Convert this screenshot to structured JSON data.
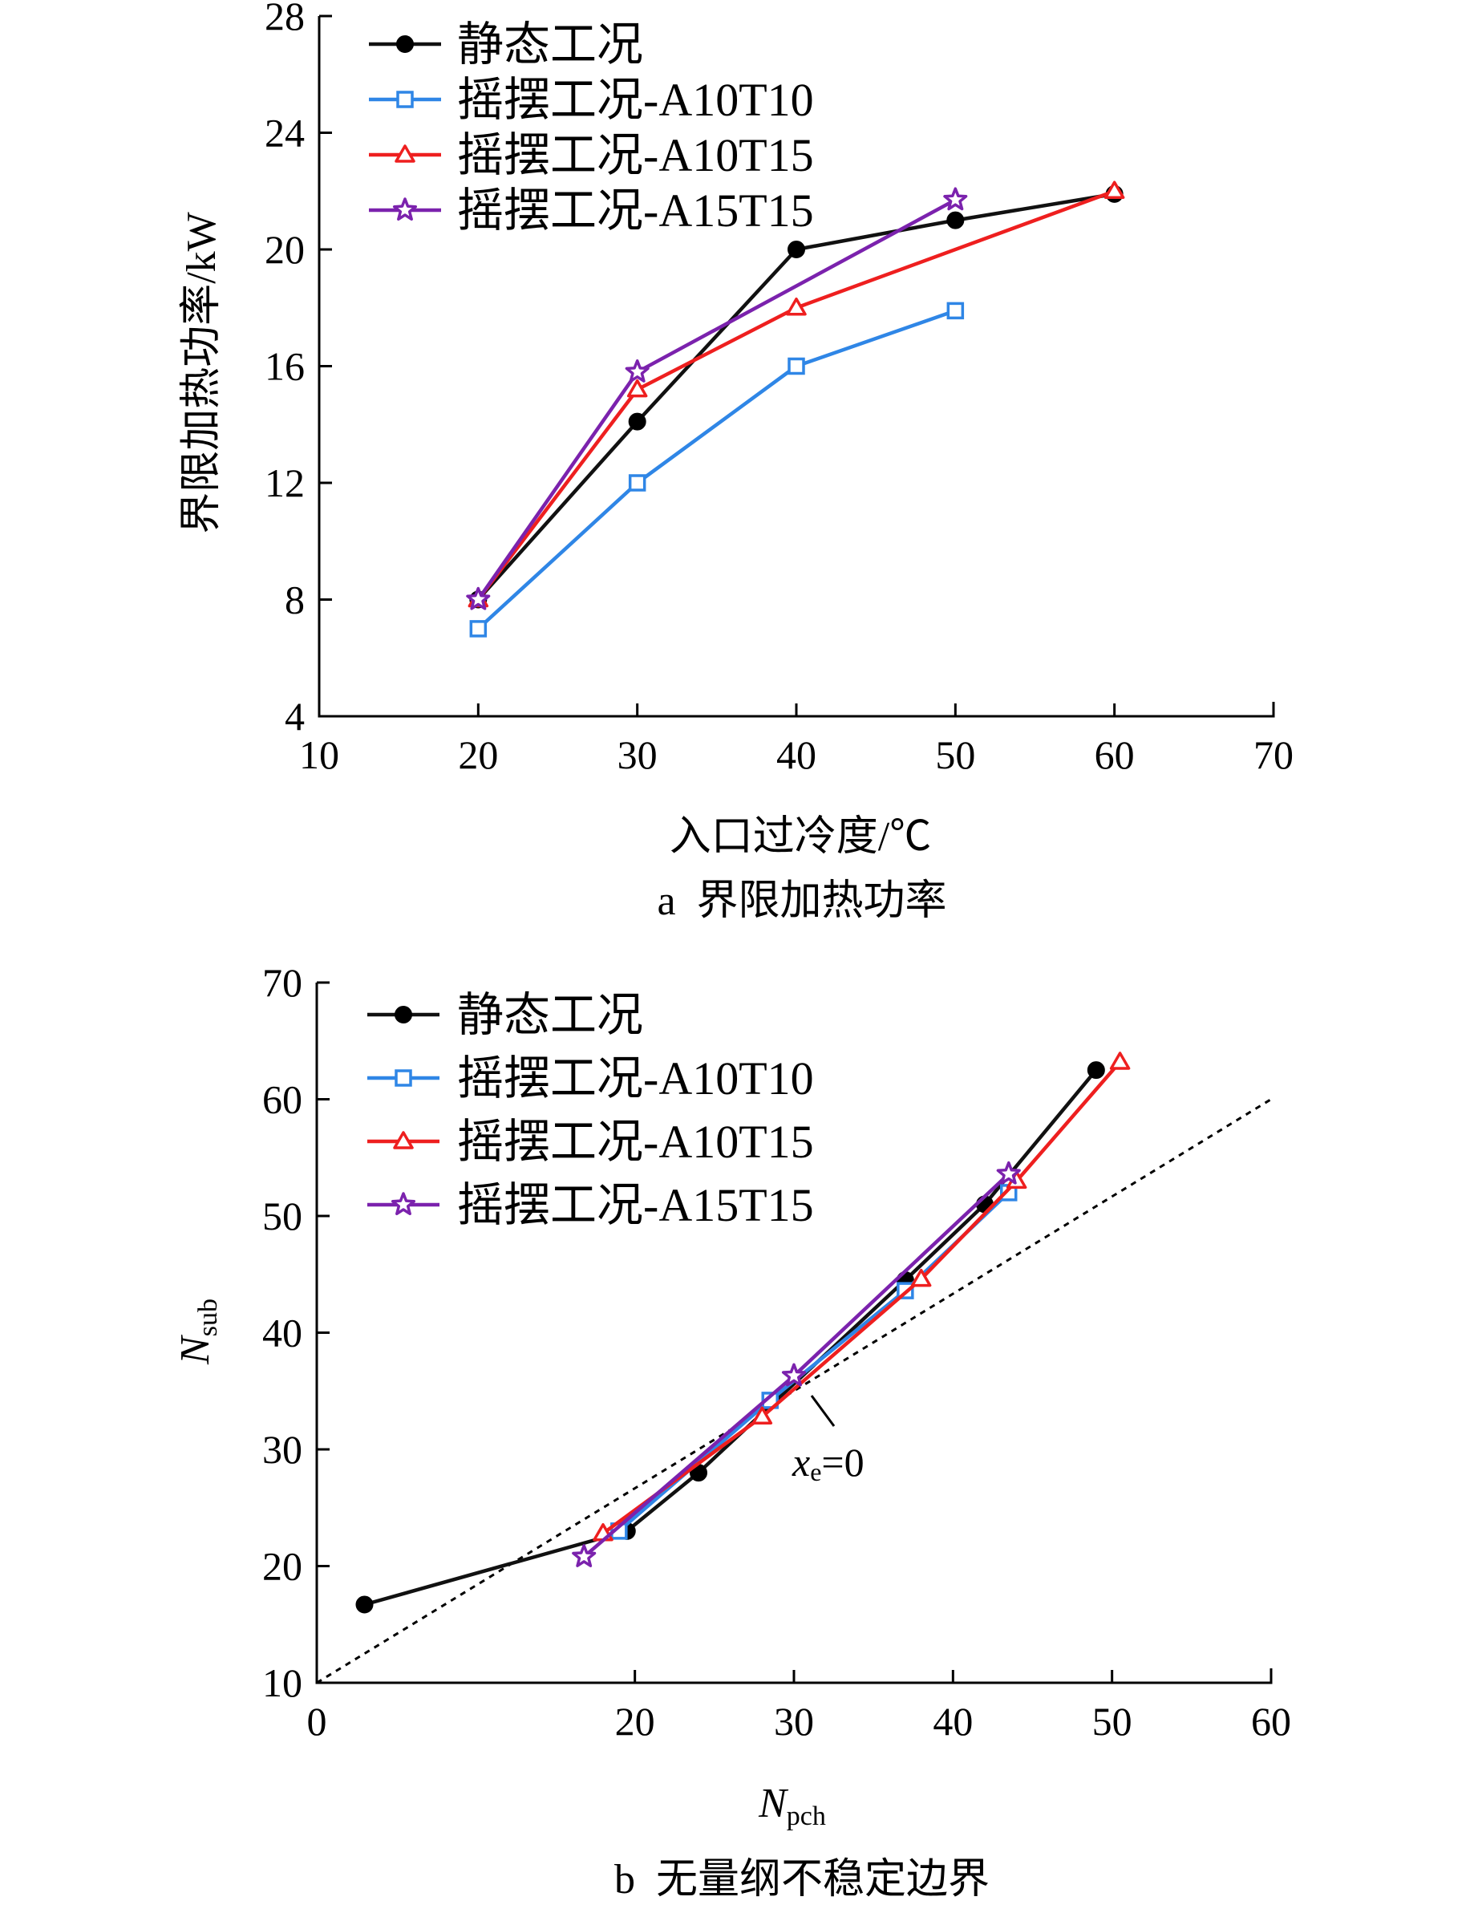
{
  "colors": {
    "static": "#111111",
    "a10t10": "#2f86e6",
    "a10t15": "#ee1f1f",
    "a15t15": "#7b22ad"
  },
  "chart_data": [
    {
      "type": "line",
      "caption": "a  界限加热功率",
      "xlabel": "入口过冷度/℃",
      "ylabel": "界限加热功率/kW",
      "xlim": [
        10,
        70
      ],
      "ylim": [
        4,
        28
      ],
      "xticks": [
        "10",
        "20",
        "30",
        "40",
        "50",
        "60",
        "70"
      ],
      "yticks": [
        "4",
        "8",
        "12",
        "16",
        "20",
        "24",
        "28"
      ],
      "legend_position": "top-left",
      "series": [
        {
          "key": "static",
          "name": "静态工况",
          "marker": "circle",
          "x": [
            20,
            30,
            40,
            50,
            60
          ],
          "y": [
            8.0,
            14.1,
            20.0,
            21.0,
            21.9
          ]
        },
        {
          "key": "a10t10",
          "name": "摇摆工况-A10T10",
          "marker": "square",
          "x": [
            20,
            30,
            40,
            50
          ],
          "y": [
            7.0,
            12.0,
            16.0,
            17.9
          ]
        },
        {
          "key": "a10t15",
          "name": "摇摆工况-A10T15",
          "marker": "triangle",
          "x": [
            20,
            30,
            40,
            60
          ],
          "y": [
            8.0,
            15.2,
            18.0,
            22.0
          ]
        },
        {
          "key": "a15t15",
          "name": "摇摆工况-A15T15",
          "marker": "star",
          "x": [
            20,
            30,
            50
          ],
          "y": [
            8.0,
            15.8,
            21.7
          ]
        }
      ]
    },
    {
      "type": "line",
      "caption": "b  无量纲不稳定边界",
      "xlabel_main": "N",
      "xlabel_sub": "pch",
      "ylabel_main": "N",
      "ylabel_sub": "sub",
      "xlim": [
        0,
        60
      ],
      "ylim": [
        10,
        70
      ],
      "xticks": [
        "0",
        "20",
        "30",
        "40",
        "50",
        "60"
      ],
      "xtick_values": [
        0,
        20,
        30,
        40,
        50,
        60
      ],
      "yticks": [
        "10",
        "20",
        "30",
        "40",
        "50",
        "60",
        "70"
      ],
      "legend_position": "top-left",
      "reference_line": {
        "label_main": "x",
        "label_sub": "e",
        "label_rest": "=0",
        "x": [
          0,
          60
        ],
        "y": [
          10,
          60
        ]
      },
      "series": [
        {
          "key": "static",
          "name": "静态工况",
          "marker": "circle",
          "x": [
            3.0,
            19.5,
            24.0,
            37.0,
            42.0,
            49.0
          ],
          "y": [
            16.7,
            23.0,
            28.0,
            44.5,
            51.0,
            62.5
          ]
        },
        {
          "key": "a10t10",
          "name": "摇摆工况-A10T10",
          "marker": "square",
          "x": [
            19.0,
            28.5,
            37.0,
            43.5
          ],
          "y": [
            23.0,
            34.2,
            43.6,
            52.0
          ]
        },
        {
          "key": "a10t15",
          "name": "摇摆工况-A10T15",
          "marker": "triangle",
          "x": [
            18.0,
            28.0,
            38.0,
            44.0,
            50.5
          ],
          "y": [
            22.8,
            32.8,
            44.6,
            53.0,
            63.2
          ]
        },
        {
          "key": "a15t15",
          "name": "摇摆工况-A15T15",
          "marker": "star",
          "x": [
            16.8,
            30.0,
            43.5
          ],
          "y": [
            20.8,
            36.3,
            53.6
          ]
        }
      ]
    }
  ]
}
